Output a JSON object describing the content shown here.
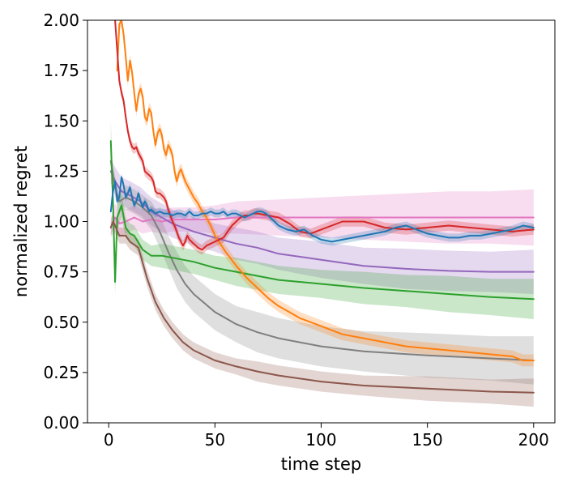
{
  "chart_data": {
    "type": "line",
    "title": "",
    "xlabel": "time step",
    "ylabel": "normalized regret",
    "xlim": [
      -10,
      210
    ],
    "ylim": [
      0,
      2
    ],
    "x_ticks": [
      0,
      50,
      100,
      150,
      200
    ],
    "x_tick_labels": [
      "0",
      "50",
      "100",
      "150",
      "200"
    ],
    "y_ticks": [
      0,
      0.25,
      0.5,
      0.75,
      1.0,
      1.25,
      1.5,
      1.75,
      2.0
    ],
    "y_tick_labels": [
      "0.00",
      "0.25",
      "0.50",
      "0.75",
      "1.00",
      "1.25",
      "1.50",
      "1.75",
      "2.00"
    ],
    "grid": false,
    "legend": null,
    "series": [
      {
        "name": "series-pink",
        "color": "#e377c2",
        "x": [
          1,
          3,
          5,
          8,
          12,
          16,
          20,
          25,
          30,
          40,
          50,
          60,
          80,
          100,
          120,
          140,
          160,
          180,
          200
        ],
        "y": [
          0.97,
          1.02,
          0.99,
          1.0,
          1.02,
          1.0,
          1.01,
          1.0,
          1.01,
          1.01,
          1.01,
          1.02,
          1.02,
          1.02,
          1.02,
          1.02,
          1.02,
          1.02,
          1.02
        ],
        "band": [
          0.05,
          0.07,
          0.07,
          0.06,
          0.06,
          0.06,
          0.06,
          0.06,
          0.06,
          0.06,
          0.07,
          0.08,
          0.09,
          0.1,
          0.11,
          0.12,
          0.13,
          0.13,
          0.14
        ]
      },
      {
        "name": "series-purple",
        "color": "#9467bd",
        "x": [
          1,
          3,
          6,
          10,
          15,
          20,
          25,
          30,
          40,
          50,
          60,
          70,
          80,
          100,
          120,
          140,
          160,
          180,
          200
        ],
        "y": [
          1.25,
          1.2,
          1.15,
          1.13,
          1.1,
          1.05,
          1.02,
          0.99,
          0.95,
          0.92,
          0.89,
          0.87,
          0.84,
          0.81,
          0.78,
          0.765,
          0.755,
          0.75,
          0.75
        ],
        "band": [
          0.06,
          0.07,
          0.07,
          0.07,
          0.07,
          0.07,
          0.07,
          0.07,
          0.07,
          0.07,
          0.08,
          0.08,
          0.08,
          0.09,
          0.09,
          0.1,
          0.1,
          0.1,
          0.11
        ]
      },
      {
        "name": "series-gray",
        "color": "#7f7f7f",
        "x": [
          1,
          3,
          5,
          8,
          12,
          16,
          20,
          24,
          28,
          32,
          36,
          40,
          50,
          60,
          70,
          80,
          100,
          120,
          150,
          180,
          200
        ],
        "y": [
          1.3,
          1.17,
          1.1,
          1.12,
          1.1,
          1.07,
          1.03,
          0.95,
          0.85,
          0.76,
          0.69,
          0.64,
          0.55,
          0.49,
          0.45,
          0.42,
          0.38,
          0.355,
          0.335,
          0.32,
          0.31
        ],
        "band": [
          0.05,
          0.05,
          0.05,
          0.06,
          0.06,
          0.06,
          0.07,
          0.08,
          0.08,
          0.09,
          0.09,
          0.09,
          0.09,
          0.09,
          0.1,
          0.1,
          0.1,
          0.1,
          0.11,
          0.11,
          0.12
        ]
      },
      {
        "name": "series-green",
        "color": "#2ca02c",
        "x": [
          1,
          2,
          3,
          4,
          6,
          8,
          10,
          12,
          16,
          20,
          25,
          30,
          40,
          50,
          60,
          70,
          80,
          100,
          120,
          140,
          160,
          180,
          200
        ],
        "y": [
          1.4,
          1.1,
          0.7,
          1.02,
          1.08,
          0.97,
          0.94,
          0.93,
          0.86,
          0.83,
          0.83,
          0.82,
          0.8,
          0.77,
          0.75,
          0.73,
          0.71,
          0.69,
          0.67,
          0.655,
          0.64,
          0.625,
          0.615
        ],
        "band": [
          0.1,
          0.1,
          0.06,
          0.06,
          0.06,
          0.05,
          0.05,
          0.05,
          0.05,
          0.05,
          0.06,
          0.06,
          0.06,
          0.06,
          0.07,
          0.07,
          0.07,
          0.07,
          0.08,
          0.08,
          0.09,
          0.09,
          0.1
        ]
      },
      {
        "name": "series-brown",
        "color": "#8c564b",
        "x": [
          1,
          2,
          3,
          5,
          8,
          10,
          14,
          18,
          22,
          26,
          30,
          35,
          40,
          50,
          60,
          70,
          80,
          100,
          120,
          150,
          180,
          200
        ],
        "y": [
          0.97,
          1.0,
          0.98,
          0.93,
          0.93,
          0.9,
          0.87,
          0.72,
          0.6,
          0.52,
          0.46,
          0.4,
          0.36,
          0.31,
          0.28,
          0.255,
          0.235,
          0.205,
          0.185,
          0.17,
          0.155,
          0.15
        ],
        "band": [
          0.04,
          0.04,
          0.04,
          0.04,
          0.04,
          0.04,
          0.04,
          0.04,
          0.04,
          0.04,
          0.04,
          0.04,
          0.04,
          0.04,
          0.04,
          0.05,
          0.05,
          0.05,
          0.05,
          0.06,
          0.06,
          0.07
        ]
      },
      {
        "name": "series-orange",
        "color": "#ff7f0e",
        "x": [
          4,
          5,
          6,
          7,
          8,
          9,
          10,
          11,
          12,
          13,
          14,
          15,
          16,
          17,
          18,
          19,
          20,
          21,
          22,
          23,
          24,
          25,
          26,
          27,
          28,
          29,
          30,
          31,
          32,
          33,
          34,
          36,
          38,
          40,
          42,
          44,
          46,
          48,
          50,
          55,
          60,
          65,
          70,
          75,
          80,
          85,
          90,
          100,
          110,
          120,
          130,
          140,
          150,
          160,
          170,
          180,
          190,
          195,
          200
        ],
        "y": [
          1.75,
          1.98,
          2.0,
          1.93,
          1.82,
          1.7,
          1.8,
          1.74,
          1.64,
          1.55,
          1.63,
          1.66,
          1.62,
          1.52,
          1.5,
          1.56,
          1.54,
          1.45,
          1.38,
          1.44,
          1.46,
          1.43,
          1.36,
          1.33,
          1.38,
          1.36,
          1.33,
          1.25,
          1.2,
          1.24,
          1.26,
          1.2,
          1.16,
          1.12,
          1.09,
          1.05,
          1.02,
          0.98,
          0.93,
          0.85,
          0.78,
          0.72,
          0.67,
          0.62,
          0.58,
          0.55,
          0.52,
          0.48,
          0.44,
          0.42,
          0.4,
          0.38,
          0.37,
          0.36,
          0.35,
          0.34,
          0.33,
          0.31,
          0.31
        ],
        "band": 0.03
      },
      {
        "name": "series-red",
        "color": "#d62728",
        "x": [
          3,
          4,
          5,
          6,
          7,
          8,
          9,
          10,
          11,
          12,
          13,
          14,
          15,
          16,
          17,
          18,
          19,
          20,
          21,
          22,
          23,
          24,
          25,
          26,
          27,
          28,
          29,
          30,
          31,
          32,
          33,
          34,
          35,
          36,
          37,
          38,
          40,
          42,
          44,
          46,
          48,
          50,
          52,
          54,
          56,
          58,
          60,
          62,
          64,
          66,
          68,
          70,
          75,
          80,
          85,
          90,
          95,
          100,
          110,
          120,
          130,
          140,
          150,
          160,
          170,
          180,
          190,
          200
        ],
        "y": [
          2.0,
          1.85,
          1.7,
          1.64,
          1.6,
          1.52,
          1.45,
          1.4,
          1.37,
          1.36,
          1.37,
          1.34,
          1.32,
          1.3,
          1.25,
          1.24,
          1.23,
          1.22,
          1.2,
          1.15,
          1.14,
          1.14,
          1.13,
          1.12,
          1.1,
          1.06,
          1.03,
          1.0,
          0.98,
          0.95,
          0.92,
          0.9,
          0.88,
          0.9,
          0.93,
          0.91,
          0.89,
          0.87,
          0.86,
          0.88,
          0.89,
          0.9,
          0.91,
          0.92,
          0.95,
          0.98,
          1.0,
          1.02,
          1.03,
          1.03,
          1.04,
          1.04,
          1.03,
          1.02,
          0.99,
          0.95,
          0.94,
          0.96,
          1.0,
          1.0,
          0.97,
          0.96,
          0.97,
          0.98,
          0.97,
          0.96,
          0.95,
          0.96
        ],
        "band": 0.025
      },
      {
        "name": "series-blue",
        "color": "#1f77b4",
        "x": [
          1,
          2,
          3,
          4,
          5,
          6,
          7,
          8,
          9,
          10,
          11,
          12,
          13,
          14,
          15,
          16,
          17,
          18,
          19,
          20,
          22,
          24,
          26,
          28,
          30,
          32,
          34,
          36,
          38,
          40,
          42,
          44,
          46,
          48,
          50,
          52,
          54,
          56,
          58,
          60,
          62,
          64,
          66,
          68,
          70,
          72,
          74,
          76,
          78,
          80,
          84,
          88,
          92,
          96,
          100,
          105,
          110,
          115,
          120,
          125,
          130,
          135,
          140,
          145,
          150,
          155,
          160,
          165,
          170,
          175,
          180,
          185,
          190,
          195,
          200
        ],
        "y": [
          1.05,
          1.15,
          1.2,
          1.1,
          1.12,
          1.22,
          1.18,
          1.12,
          1.14,
          1.17,
          1.12,
          1.08,
          1.1,
          1.14,
          1.1,
          1.07,
          1.1,
          1.08,
          1.05,
          1.06,
          1.04,
          1.05,
          1.04,
          1.04,
          1.03,
          1.04,
          1.04,
          1.03,
          1.05,
          1.03,
          1.03,
          1.04,
          1.04,
          1.05,
          1.04,
          1.04,
          1.05,
          1.03,
          1.04,
          1.04,
          1.03,
          1.02,
          1.03,
          1.04,
          1.05,
          1.05,
          1.04,
          1.02,
          1.0,
          0.98,
          0.96,
          0.95,
          0.96,
          0.93,
          0.91,
          0.9,
          0.91,
          0.92,
          0.93,
          0.94,
          0.95,
          0.97,
          0.98,
          0.96,
          0.94,
          0.93,
          0.92,
          0.92,
          0.93,
          0.93,
          0.94,
          0.95,
          0.96,
          0.98,
          0.97
        ],
        "band": 0.02
      }
    ]
  }
}
